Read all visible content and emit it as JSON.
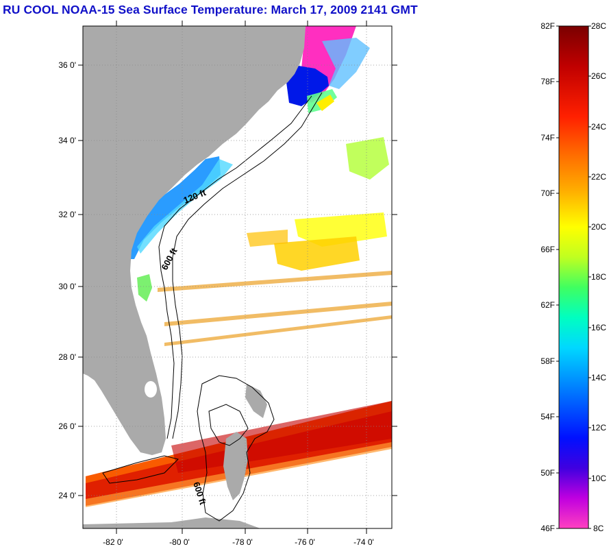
{
  "title": "RU COOL  NOAA-15  Sea Surface Temperature:  March 17, 2009 2141 GMT",
  "map": {
    "lat_labels": [
      "36 0'",
      "34 0'",
      "32 0'",
      "30 0'",
      "28 0'",
      "26 0'",
      "24 0'"
    ],
    "lon_labels": [
      "-82 0'",
      "-80 0'",
      "-78 0'",
      "-76 0'",
      "-74 0'"
    ],
    "contour_labels": {
      "shelf_120": "120 ft",
      "slope_600_north": "600 ft",
      "slope_600_south": "600 ft"
    },
    "colors": {
      "land": "#aaaaaa",
      "ocean_no_data": "#ffffff",
      "contour": "#000000"
    }
  },
  "colorbar": {
    "fahrenheit_labels": [
      "82F",
      "78F",
      "74F",
      "70F",
      "66F",
      "62F",
      "58F",
      "54F",
      "50F",
      "46F"
    ],
    "celsius_labels": [
      "28C",
      "26C",
      "24C",
      "22C",
      "20C",
      "18C",
      "16C",
      "14C",
      "12C",
      "10C",
      "8C"
    ],
    "colors": [
      "#8b0000",
      "#e00000",
      "#ff4000",
      "#ff8c00",
      "#ffd000",
      "#ffff00",
      "#c0ff00",
      "#40ff40",
      "#00ffb0",
      "#00e0ff",
      "#0090ff",
      "#0030ff",
      "#0000e0",
      "#8000c0",
      "#e000c0",
      "#ff40c0"
    ]
  }
}
